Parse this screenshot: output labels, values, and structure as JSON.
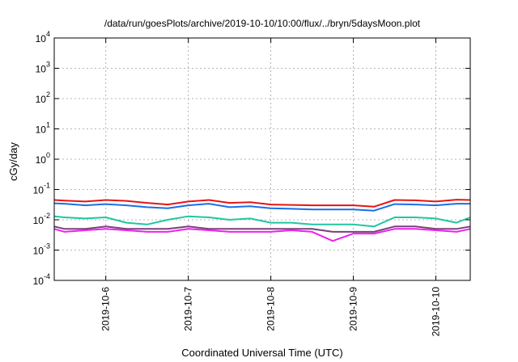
{
  "chart_data": {
    "type": "line",
    "title": "/data/run/goesPlots/archive/2019-10-10/10:00/flux/../bryn/5daysMoon.plot",
    "xlabel": "Coordinated Universal Time (UTC)",
    "ylabel": "cGy/day",
    "x_axis": {
      "type": "date",
      "range": [
        "2019-10-05T09:00",
        "2019-10-10T10:00"
      ],
      "ticks": [
        "2019-10-6",
        "2019-10-7",
        "2019-10-8",
        "2019-10-9",
        "2019-10-10"
      ],
      "tick_values": [
        "2019-10-06",
        "2019-10-07",
        "2019-10-08",
        "2019-10-09",
        "2019-10-10"
      ]
    },
    "y_axis": {
      "scale": "log",
      "range": [
        0.0001,
        10000
      ],
      "ticks": [
        {
          "mant": "10",
          "exp": "4",
          "value": 10000
        },
        {
          "mant": "10",
          "exp": "3",
          "value": 1000
        },
        {
          "mant": "10",
          "exp": "2",
          "value": 100
        },
        {
          "mant": "10",
          "exp": "1",
          "value": 10
        },
        {
          "mant": "10",
          "exp": "0",
          "value": 1
        },
        {
          "mant": "10",
          "exp": "-1",
          "value": 0.1
        },
        {
          "mant": "10",
          "exp": "-2",
          "value": 0.01
        },
        {
          "mant": "10",
          "exp": "-3",
          "value": 0.001
        },
        {
          "mant": "10",
          "exp": "-4",
          "value": 0.0001
        }
      ]
    },
    "grid": true,
    "legend": "none",
    "series": [
      {
        "color": "#e81414",
        "x": [
          "2019-10-05T09:00",
          "2019-10-05T12:00",
          "2019-10-05T18:00",
          "2019-10-06T00:00",
          "2019-10-06T06:00",
          "2019-10-06T12:00",
          "2019-10-06T18:00",
          "2019-10-07T00:00",
          "2019-10-07T06:00",
          "2019-10-07T12:00",
          "2019-10-07T18:00",
          "2019-10-08T00:00",
          "2019-10-08T06:00",
          "2019-10-08T12:00",
          "2019-10-08T18:00",
          "2019-10-09T00:00",
          "2019-10-09T06:00",
          "2019-10-09T12:00",
          "2019-10-09T18:00",
          "2019-10-10T00:00",
          "2019-10-10T06:00",
          "2019-10-10T10:00"
        ],
        "values": [
          0.045,
          0.043,
          0.04,
          0.045,
          0.042,
          0.036,
          0.032,
          0.04,
          0.045,
          0.036,
          0.038,
          0.032,
          0.031,
          0.03,
          0.03,
          0.03,
          0.027,
          0.045,
          0.044,
          0.04,
          0.046,
          0.045
        ]
      },
      {
        "color": "#1a6fe8",
        "x": [
          "2019-10-05T09:00",
          "2019-10-05T12:00",
          "2019-10-05T18:00",
          "2019-10-06T00:00",
          "2019-10-06T06:00",
          "2019-10-06T12:00",
          "2019-10-06T18:00",
          "2019-10-07T00:00",
          "2019-10-07T06:00",
          "2019-10-07T12:00",
          "2019-10-07T18:00",
          "2019-10-08T00:00",
          "2019-10-08T06:00",
          "2019-10-08T12:00",
          "2019-10-08T18:00",
          "2019-10-09T00:00",
          "2019-10-09T06:00",
          "2019-10-09T12:00",
          "2019-10-09T18:00",
          "2019-10-10T00:00",
          "2019-10-10T06:00",
          "2019-10-10T10:00"
        ],
        "values": [
          0.035,
          0.034,
          0.03,
          0.033,
          0.03,
          0.026,
          0.024,
          0.03,
          0.034,
          0.026,
          0.028,
          0.024,
          0.023,
          0.022,
          0.022,
          0.022,
          0.02,
          0.033,
          0.032,
          0.03,
          0.034,
          0.034
        ]
      },
      {
        "color": "#1fc7a0",
        "x": [
          "2019-10-05T09:00",
          "2019-10-05T12:00",
          "2019-10-05T18:00",
          "2019-10-06T00:00",
          "2019-10-06T06:00",
          "2019-10-06T12:00",
          "2019-10-06T18:00",
          "2019-10-07T00:00",
          "2019-10-07T06:00",
          "2019-10-07T12:00",
          "2019-10-07T18:00",
          "2019-10-08T00:00",
          "2019-10-08T06:00",
          "2019-10-08T12:00",
          "2019-10-08T18:00",
          "2019-10-09T00:00",
          "2019-10-09T06:00",
          "2019-10-09T12:00",
          "2019-10-09T18:00",
          "2019-10-10T00:00",
          "2019-10-10T06:00",
          "2019-10-10T10:00"
        ],
        "values": [
          0.013,
          0.012,
          0.011,
          0.012,
          0.008,
          0.007,
          0.01,
          0.013,
          0.012,
          0.01,
          0.011,
          0.008,
          0.008,
          0.007,
          0.007,
          0.007,
          0.006,
          0.012,
          0.012,
          0.011,
          0.008,
          0.012
        ]
      },
      {
        "color": "#7a3f7a",
        "x": [
          "2019-10-05T09:00",
          "2019-10-05T12:00",
          "2019-10-05T18:00",
          "2019-10-06T00:00",
          "2019-10-06T06:00",
          "2019-10-06T12:00",
          "2019-10-06T18:00",
          "2019-10-07T00:00",
          "2019-10-07T06:00",
          "2019-10-07T12:00",
          "2019-10-07T18:00",
          "2019-10-08T00:00",
          "2019-10-08T06:00",
          "2019-10-08T12:00",
          "2019-10-08T18:00",
          "2019-10-09T00:00",
          "2019-10-09T06:00",
          "2019-10-09T12:00",
          "2019-10-09T18:00",
          "2019-10-10T00:00",
          "2019-10-10T06:00",
          "2019-10-10T10:00"
        ],
        "values": [
          0.006,
          0.005,
          0.005,
          0.006,
          0.005,
          0.005,
          0.005,
          0.006,
          0.005,
          0.005,
          0.005,
          0.005,
          0.005,
          0.005,
          0.004,
          0.004,
          0.004,
          0.006,
          0.006,
          0.005,
          0.005,
          0.006
        ]
      },
      {
        "color": "#ee20ee",
        "x": [
          "2019-10-05T09:00",
          "2019-10-05T12:00",
          "2019-10-05T18:00",
          "2019-10-06T00:00",
          "2019-10-06T06:00",
          "2019-10-06T12:00",
          "2019-10-06T18:00",
          "2019-10-07T00:00",
          "2019-10-07T06:00",
          "2019-10-07T12:00",
          "2019-10-07T18:00",
          "2019-10-08T00:00",
          "2019-10-08T06:00",
          "2019-10-08T12:00",
          "2019-10-08T18:00",
          "2019-10-09T00:00",
          "2019-10-09T06:00",
          "2019-10-09T12:00",
          "2019-10-09T18:00",
          "2019-10-10T00:00",
          "2019-10-10T06:00",
          "2019-10-10T10:00"
        ],
        "values": [
          0.005,
          0.004,
          0.0045,
          0.005,
          0.0045,
          0.004,
          0.004,
          0.005,
          0.0045,
          0.004,
          0.004,
          0.004,
          0.0045,
          0.004,
          0.002,
          0.0035,
          0.0035,
          0.005,
          0.005,
          0.0045,
          0.004,
          0.005
        ]
      }
    ]
  }
}
